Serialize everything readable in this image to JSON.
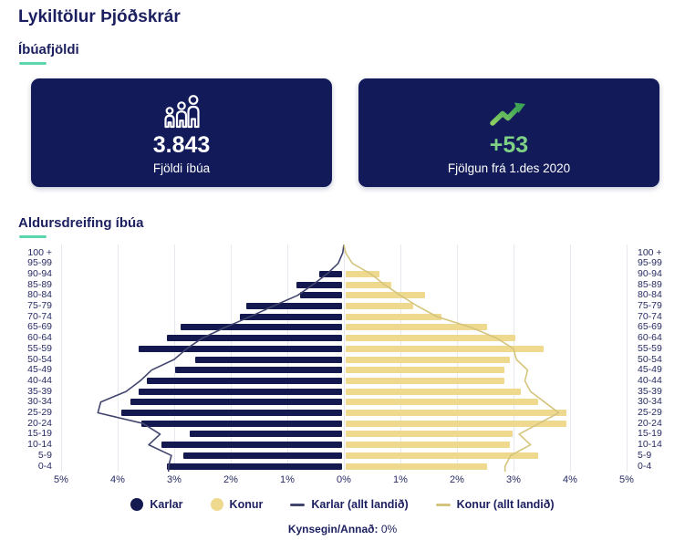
{
  "page": {
    "title": "Lykiltölur Þjóðskrár"
  },
  "sections": {
    "population": {
      "heading": "Íbúafjöldi"
    },
    "age_distribution": {
      "heading": "Aldursdreifing íbúa"
    }
  },
  "cards": {
    "population": {
      "icon": "people-icon",
      "value": "3.843",
      "label": "Fjöldi íbúa"
    },
    "growth": {
      "icon": "trend-up-icon",
      "value": "+53",
      "label": "Fjölgun frá 1.des 2020"
    }
  },
  "colors": {
    "navy_text": "#1b1f5f",
    "card_background": "#121a5a",
    "teal_accent": "#5bd6af",
    "green_value": "#7ed184",
    "grid": "#e8e8f1",
    "male_bar": "#141a4f",
    "female_bar": "#eed98f",
    "male_line": "#42466f",
    "female_line": "#d5c47d"
  },
  "chart_data": {
    "type": "bar",
    "subtype": "population-pyramid",
    "title": "Aldursdreifing íbúa",
    "unit": "%",
    "xlim": [
      0,
      5
    ],
    "grid": true,
    "age_groups": [
      "100 +",
      "95-99",
      "90-94",
      "85-89",
      "80-84",
      "75-79",
      "70-74",
      "65-69",
      "60-64",
      "55-59",
      "50-54",
      "45-49",
      "40-44",
      "35-39",
      "30-34",
      "25-29",
      "20-24",
      "15-19",
      "10-14",
      "5-9",
      "0-4"
    ],
    "x_ticks": [
      "5%",
      "4%",
      "3%",
      "2%",
      "1%",
      "0%",
      "1%",
      "2%",
      "3%",
      "4%",
      "5%"
    ],
    "series": [
      {
        "name": "Karlar",
        "type": "bar",
        "side": "left",
        "color": "#141a4f",
        "values": [
          0,
          0,
          0.4,
          0.8,
          0.75,
          1.7,
          1.8,
          2.85,
          3.1,
          3.6,
          2.6,
          2.95,
          3.45,
          3.6,
          3.75,
          3.9,
          3.55,
          2.7,
          3.2,
          2.8,
          3.1
        ]
      },
      {
        "name": "Konur",
        "type": "bar",
        "side": "right",
        "color": "#eed98f",
        "values": [
          0,
          0,
          0.6,
          0.8,
          1.4,
          1.2,
          1.7,
          2.5,
          3.0,
          3.5,
          2.9,
          2.8,
          2.8,
          3.1,
          3.4,
          3.9,
          3.9,
          2.95,
          2.9,
          3.4,
          2.5
        ]
      },
      {
        "name": "Karlar (allt landið)",
        "type": "line",
        "side": "left",
        "color": "#42466f",
        "values": [
          0.02,
          0.1,
          0.3,
          0.55,
          0.82,
          1.25,
          1.66,
          2.1,
          2.5,
          2.78,
          3.0,
          3.4,
          3.6,
          3.85,
          4.3,
          4.35,
          3.55,
          3.25,
          3.45,
          3.05,
          3.1
        ]
      },
      {
        "name": "Konur (allt landið)",
        "type": "line",
        "side": "right",
        "color": "#d5c47d",
        "values": [
          0.03,
          0.15,
          0.48,
          0.72,
          1.0,
          1.3,
          1.65,
          2.25,
          2.7,
          3.0,
          3.05,
          3.25,
          3.2,
          3.3,
          3.55,
          3.8,
          3.45,
          3.1,
          3.3,
          2.95,
          2.85
        ]
      }
    ],
    "legend_position": "bottom"
  },
  "legend": {
    "items": [
      {
        "label": "Karlar",
        "marker": "navy-dot"
      },
      {
        "label": "Konur",
        "marker": "yellow-dot"
      },
      {
        "label": "Karlar (allt landið)",
        "marker": "navy-dash"
      },
      {
        "label": "Konur (allt landið)",
        "marker": "yellow-dash"
      }
    ]
  },
  "footnote": {
    "label": "Kynsegin/Annað:",
    "value": "0%"
  }
}
